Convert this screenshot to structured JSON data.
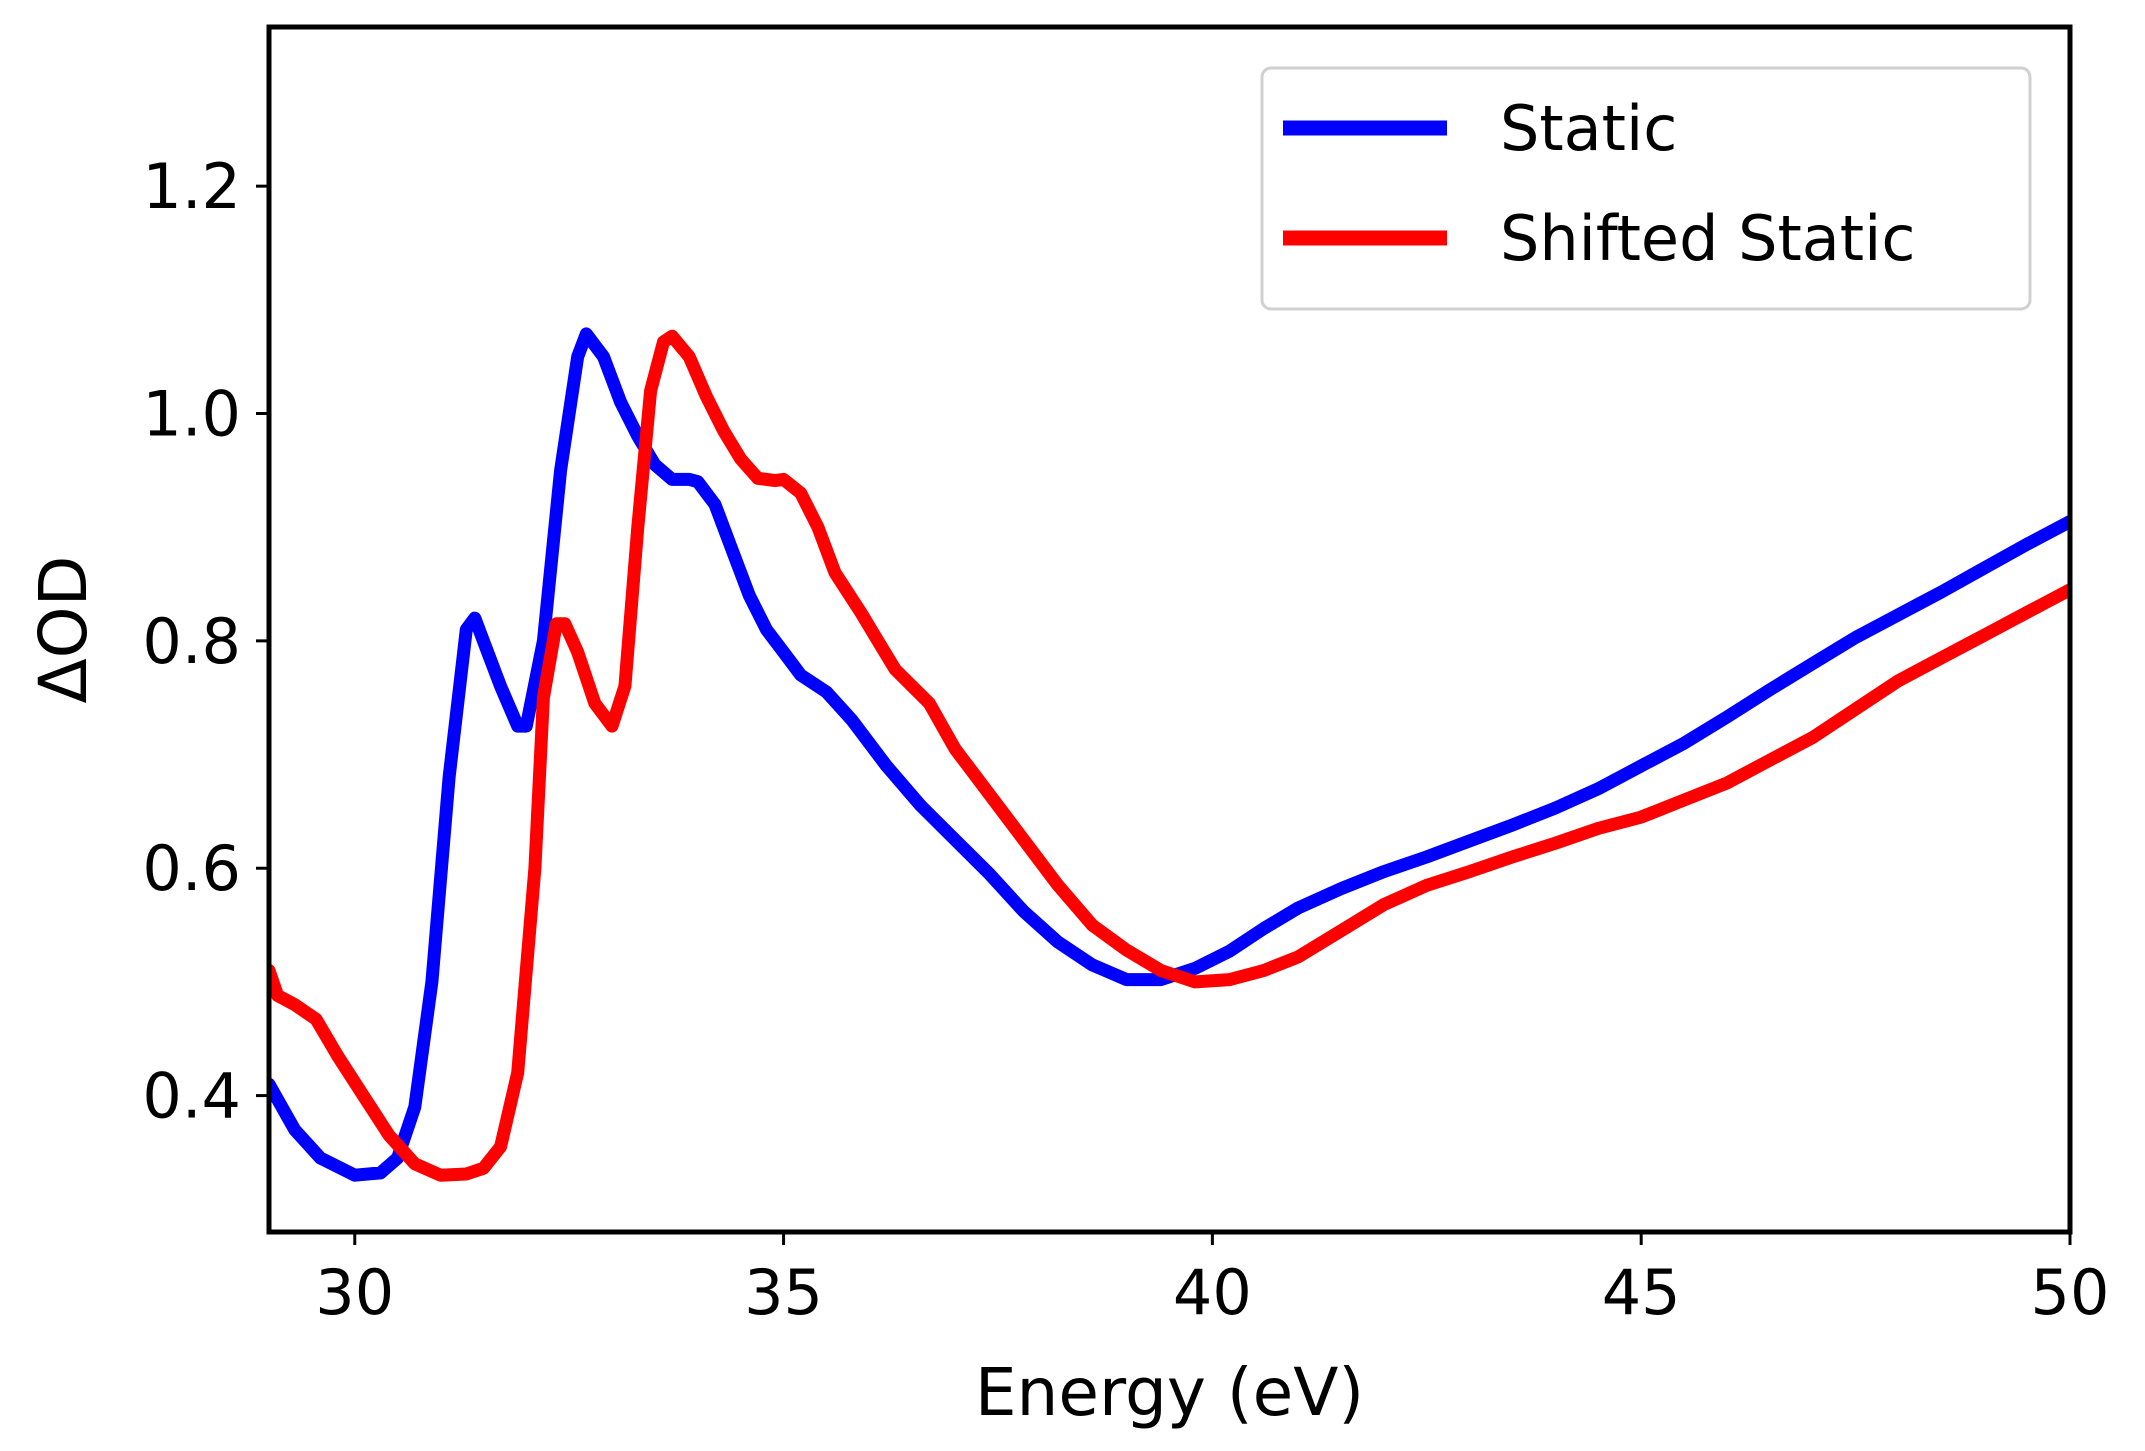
{
  "chart_data": {
    "type": "line",
    "title": "",
    "xlabel": "Energy (eV)",
    "ylabel": "ΔOD",
    "xlim": [
      29,
      50
    ],
    "ylim": [
      0.28,
      1.34
    ],
    "xticks": [
      30,
      35,
      40,
      45,
      50
    ],
    "yticks": [
      0.4,
      0.6,
      0.8,
      1.0,
      1.2
    ],
    "xtick_labels": [
      "30",
      "35",
      "40",
      "45",
      "50"
    ],
    "ytick_labels": [
      "0.4",
      "0.6",
      "0.8",
      "1.0",
      "1.2"
    ],
    "grid": false,
    "legend_position": "top-right",
    "series": [
      {
        "name": "Static",
        "color": "#0000ff",
        "points": [
          [
            29.0,
            0.41
          ],
          [
            29.3,
            0.37
          ],
          [
            29.6,
            0.345
          ],
          [
            30.0,
            0.33
          ],
          [
            30.3,
            0.332
          ],
          [
            30.5,
            0.345
          ],
          [
            30.7,
            0.39
          ],
          [
            30.9,
            0.5
          ],
          [
            31.1,
            0.68
          ],
          [
            31.3,
            0.81
          ],
          [
            31.4,
            0.82
          ],
          [
            31.5,
            0.8
          ],
          [
            31.7,
            0.76
          ],
          [
            31.9,
            0.725
          ],
          [
            32.0,
            0.725
          ],
          [
            32.2,
            0.8
          ],
          [
            32.4,
            0.95
          ],
          [
            32.6,
            1.05
          ],
          [
            32.7,
            1.07
          ],
          [
            32.9,
            1.05
          ],
          [
            33.1,
            1.01
          ],
          [
            33.3,
            0.98
          ],
          [
            33.5,
            0.955
          ],
          [
            33.7,
            0.942
          ],
          [
            33.9,
            0.942
          ],
          [
            34.0,
            0.94
          ],
          [
            34.2,
            0.92
          ],
          [
            34.4,
            0.88
          ],
          [
            34.6,
            0.84
          ],
          [
            34.8,
            0.81
          ],
          [
            35.0,
            0.79
          ],
          [
            35.2,
            0.77
          ],
          [
            35.5,
            0.755
          ],
          [
            35.8,
            0.73
          ],
          [
            36.2,
            0.69
          ],
          [
            36.6,
            0.655
          ],
          [
            37.0,
            0.625
          ],
          [
            37.4,
            0.595
          ],
          [
            37.8,
            0.562
          ],
          [
            38.2,
            0.535
          ],
          [
            38.6,
            0.515
          ],
          [
            39.0,
            0.502
          ],
          [
            39.4,
            0.502
          ],
          [
            39.8,
            0.512
          ],
          [
            40.2,
            0.527
          ],
          [
            40.6,
            0.547
          ],
          [
            41.0,
            0.565
          ],
          [
            41.5,
            0.582
          ],
          [
            42.0,
            0.597
          ],
          [
            42.5,
            0.61
          ],
          [
            43.0,
            0.624
          ],
          [
            43.5,
            0.638
          ],
          [
            44.0,
            0.653
          ],
          [
            44.5,
            0.67
          ],
          [
            45.0,
            0.69
          ],
          [
            45.5,
            0.71
          ],
          [
            46.0,
            0.733
          ],
          [
            46.5,
            0.757
          ],
          [
            47.0,
            0.78
          ],
          [
            47.5,
            0.803
          ],
          [
            48.0,
            0.823
          ],
          [
            48.5,
            0.843
          ],
          [
            49.0,
            0.864
          ],
          [
            49.5,
            0.885
          ],
          [
            50.0,
            0.905
          ]
        ]
      },
      {
        "name": "Shifted Static",
        "color": "#ff0000",
        "points": [
          [
            29.0,
            0.51
          ],
          [
            29.1,
            0.488
          ],
          [
            29.3,
            0.48
          ],
          [
            29.55,
            0.467
          ],
          [
            29.8,
            0.435
          ],
          [
            30.1,
            0.4
          ],
          [
            30.4,
            0.365
          ],
          [
            30.7,
            0.34
          ],
          [
            31.0,
            0.33
          ],
          [
            31.3,
            0.331
          ],
          [
            31.5,
            0.336
          ],
          [
            31.7,
            0.355
          ],
          [
            31.9,
            0.42
          ],
          [
            32.1,
            0.6
          ],
          [
            32.2,
            0.75
          ],
          [
            32.35,
            0.815
          ],
          [
            32.45,
            0.815
          ],
          [
            32.6,
            0.79
          ],
          [
            32.8,
            0.745
          ],
          [
            33.0,
            0.725
          ],
          [
            33.15,
            0.76
          ],
          [
            33.3,
            0.9
          ],
          [
            33.45,
            1.02
          ],
          [
            33.6,
            1.063
          ],
          [
            33.7,
            1.068
          ],
          [
            33.9,
            1.05
          ],
          [
            34.1,
            1.015
          ],
          [
            34.3,
            0.985
          ],
          [
            34.5,
            0.96
          ],
          [
            34.7,
            0.943
          ],
          [
            34.9,
            0.941
          ],
          [
            35.0,
            0.942
          ],
          [
            35.2,
            0.93
          ],
          [
            35.4,
            0.9
          ],
          [
            35.6,
            0.86
          ],
          [
            35.9,
            0.825
          ],
          [
            36.1,
            0.8
          ],
          [
            36.3,
            0.775
          ],
          [
            36.5,
            0.76
          ],
          [
            36.7,
            0.745
          ],
          [
            37.0,
            0.705
          ],
          [
            37.4,
            0.665
          ],
          [
            37.8,
            0.625
          ],
          [
            38.2,
            0.585
          ],
          [
            38.6,
            0.55
          ],
          [
            39.0,
            0.528
          ],
          [
            39.4,
            0.51
          ],
          [
            39.8,
            0.5
          ],
          [
            40.2,
            0.502
          ],
          [
            40.6,
            0.51
          ],
          [
            41.0,
            0.522
          ],
          [
            41.5,
            0.545
          ],
          [
            42.0,
            0.568
          ],
          [
            42.5,
            0.585
          ],
          [
            43.0,
            0.597
          ],
          [
            43.5,
            0.61
          ],
          [
            44.0,
            0.622
          ],
          [
            44.5,
            0.635
          ],
          [
            45.0,
            0.645
          ],
          [
            45.5,
            0.66
          ],
          [
            46.0,
            0.675
          ],
          [
            46.5,
            0.695
          ],
          [
            47.0,
            0.715
          ],
          [
            47.5,
            0.74
          ],
          [
            48.0,
            0.765
          ],
          [
            48.5,
            0.785
          ],
          [
            49.0,
            0.805
          ],
          [
            49.5,
            0.825
          ],
          [
            50.0,
            0.845
          ]
        ]
      }
    ]
  }
}
